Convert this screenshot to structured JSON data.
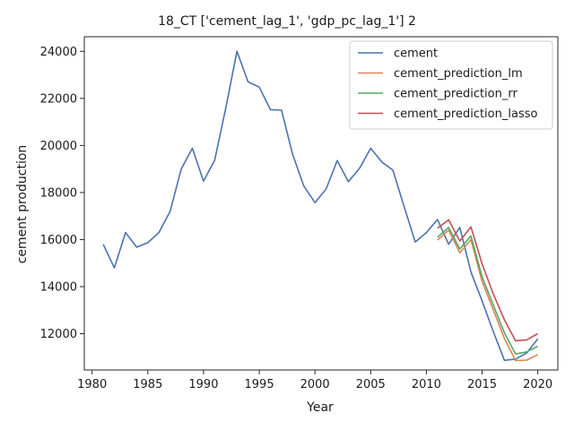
{
  "chart_data": {
    "type": "line",
    "title": "18_CT ['cement_lag_1', 'gdp_pc_lag_1'] 2",
    "xlabel": "Year",
    "ylabel": "cement production",
    "xlim": [
      1979.3,
      2021.8
    ],
    "ylim": [
      10460,
      24620
    ],
    "x_ticks": [
      1980,
      1985,
      1990,
      1995,
      2000,
      2005,
      2010,
      2015,
      2020
    ],
    "y_ticks": [
      12000,
      14000,
      16000,
      18000,
      20000,
      22000,
      24000
    ],
    "grid": false,
    "legend_position": "top-right",
    "series": [
      {
        "name": "cement",
        "color": "#4c72b0",
        "x": [
          1981,
          1982,
          1983,
          1984,
          1985,
          1986,
          1987,
          1988,
          1989,
          1990,
          1991,
          1992,
          1993,
          1994,
          1995,
          1996,
          1997,
          1998,
          1999,
          2000,
          2001,
          2002,
          2003,
          2004,
          2005,
          2006,
          2007,
          2008,
          2009,
          2010,
          2011,
          2012,
          2013,
          2014,
          2015,
          2016,
          2017,
          2018,
          2019,
          2020
        ],
        "y": [
          15800,
          14800,
          16300,
          15680,
          15870,
          16300,
          17200,
          19000,
          19880,
          18480,
          19380,
          21600,
          24000,
          22700,
          22480,
          21520,
          21500,
          19620,
          18280,
          17570,
          18150,
          19360,
          18460,
          19030,
          19880,
          19300,
          18950,
          17400,
          15900,
          16300,
          16850,
          15800,
          16520,
          14620,
          13400,
          12100,
          10870,
          10920,
          11180,
          11780
        ]
      },
      {
        "name": "cement_prediction_lm",
        "color": "#dd8452",
        "x": [
          2011,
          2012,
          2013,
          2014,
          2015,
          2016,
          2017,
          2018,
          2019,
          2020
        ],
        "y": [
          15980,
          16400,
          15440,
          16000,
          14230,
          13020,
          11800,
          10860,
          10880,
          11110
        ]
      },
      {
        "name": "cement_prediction_rr",
        "color": "#55a868",
        "x": [
          2011,
          2012,
          2013,
          2014,
          2015,
          2016,
          2017,
          2018,
          2019,
          2020
        ],
        "y": [
          16100,
          16520,
          15600,
          16160,
          14420,
          13230,
          12040,
          11140,
          11230,
          11470
        ]
      },
      {
        "name": "cement_prediction_lasso",
        "color": "#c44e52",
        "x": [
          2011,
          2012,
          2013,
          2014,
          2015,
          2016,
          2017,
          2018,
          2019,
          2020
        ],
        "y": [
          16480,
          16840,
          15940,
          16540,
          14970,
          13700,
          12590,
          11700,
          11740,
          12000
        ]
      }
    ]
  }
}
